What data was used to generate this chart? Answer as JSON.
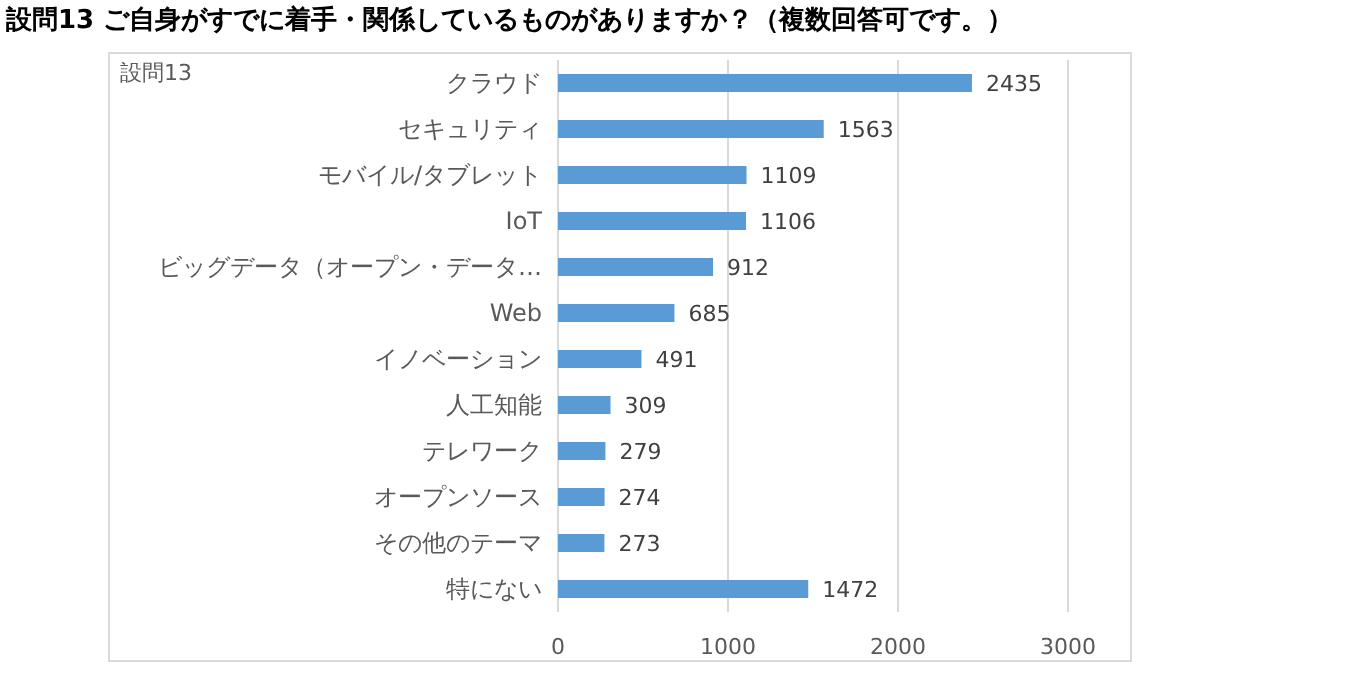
{
  "chart_data": {
    "type": "bar",
    "orientation": "horizontal",
    "title": "設問13  ご自身がすでに着手・関係しているものがありますか？（複数回答可です。）",
    "annotations": [
      "設問13"
    ],
    "categories": [
      "クラウド",
      "セキュリティ",
      "モバイル/タブレット",
      "IoT",
      "ビッグデータ（オープン・データ…",
      "Web",
      "イノベーション",
      "人工知能",
      "テレワーク",
      "オープンソース",
      "その他のテーマ",
      "特にない"
    ],
    "values": [
      2435,
      1563,
      1109,
      1106,
      912,
      685,
      491,
      309,
      279,
      274,
      273,
      1472
    ],
    "color": "#5b9bd5",
    "xlim": [
      0,
      3000
    ],
    "xticks": [
      0,
      1000,
      2000,
      3000
    ],
    "grid": "x",
    "data_labels": true
  }
}
